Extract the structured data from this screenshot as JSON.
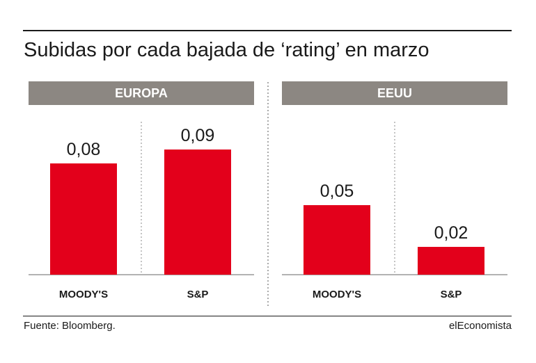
{
  "title": "Subidas por cada bajada de ‘rating’ en marzo",
  "source": "Fuente: Bloomberg.",
  "brand": "elEconomista",
  "colors": {
    "bar": "#e3001b",
    "header_bg": "#8c8782",
    "text": "#1a1a1a"
  },
  "chart_data": [
    {
      "type": "bar",
      "panel": "EUROPA",
      "categories": [
        "MOODY'S",
        "S&P"
      ],
      "values": [
        0.08,
        0.09
      ],
      "value_labels": [
        "0,08",
        "0,09"
      ],
      "ylim": [
        0,
        0.1
      ]
    },
    {
      "type": "bar",
      "panel": "EEUU",
      "categories": [
        "MOODY'S",
        "S&P"
      ],
      "values": [
        0.05,
        0.02
      ],
      "value_labels": [
        "0,05",
        "0,02"
      ],
      "ylim": [
        0,
        0.1
      ]
    }
  ]
}
